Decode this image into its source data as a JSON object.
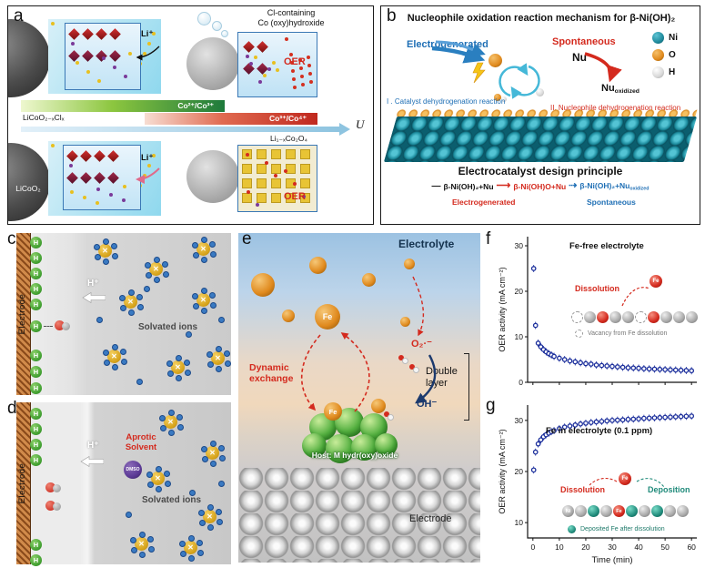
{
  "colors": {
    "blue_accent": "#1f6fb5",
    "red_accent": "#d42a1e",
    "ni_teal": "#1f8a9c",
    "o_orange": "#e0891e",
    "point_navy": "#1c2f9c",
    "deposit_teal": "#1f8a7a",
    "host_green": "#3fae3f"
  },
  "glyphs": {
    "cross": "✕",
    "h": "H"
  },
  "panel_a": {
    "label": "a",
    "caption_line1": "Cl-containing",
    "caption_line2": "Co (oxy)hydroxide",
    "li_top": "Li⁺",
    "li_bottom": "Li⁺",
    "oer_top": "OER",
    "oer_bottom": "OER",
    "licoo2xclx": "LiCoO₂₋ₓClₓ",
    "licoo2": "LiCoO₂",
    "li1xco2o4": "Li₁₋ₓCo₂O₄",
    "co_couple_low": "Co²⁺/Co³⁺",
    "co_couple_high": "Co³⁺/Co⁴⁺",
    "u_label": "U"
  },
  "panel_b": {
    "label": "b",
    "title": "Nucleophile oxidation reaction mechanism for β-Ni(OH)₂",
    "electrogenerated": "Electrogenerated",
    "spontaneous": "Spontaneous",
    "nu": "Nu",
    "nu_ox_base": "Nu",
    "nu_ox_sub": "oxidized",
    "legend": [
      {
        "label": "Ni",
        "color": "#1f8a9c"
      },
      {
        "label": "O",
        "color": "#e0891e"
      },
      {
        "label": "H",
        "color": "#e8e8e8"
      }
    ],
    "reaction_i": "I . Catalyst dehydrogenation reaction",
    "reaction_ii": "II. Nucleophile dehydrogenation reaction",
    "principle": "Electrocatalyst design principle",
    "scheme_prefix": "—",
    "scheme_start": "β-Ni(OH)₂+Nu",
    "arrow_solid": "⟶",
    "scheme_mid": "β-Ni(OH)O+Nu",
    "arrow_dashed": "⇢",
    "scheme_end_base": "β-Ni(OH)₂+Nu",
    "scheme_end_sub": "oxidized",
    "under_left": "Electrogenerated",
    "under_right": "Spontaneous"
  },
  "panel_c": {
    "label": "c",
    "electrode": "Electrode",
    "h_plus": "H⁺",
    "solvated_ions": "Solvated ions"
  },
  "panel_d": {
    "label": "d",
    "electrode": "Electrode",
    "h_plus": "H⁺",
    "aprotic_line1": "Aprotic",
    "aprotic_line2": "Solvent",
    "dmso": "DMSO",
    "solvated_ions": "Solvated ions"
  },
  "panel_e": {
    "label": "e",
    "electrolyte": "Electrolyte",
    "fe": "Fe",
    "dynamic_line1": "Dynamic",
    "dynamic_line2": "exchange",
    "o2": "O₂·⁻",
    "double_layer_line1": "Double",
    "double_layer_line2": "layer",
    "oh": "OH⁻",
    "host": "Host: M hydr(oxy)oxide",
    "electrode": "Electrode"
  },
  "panel_f": {
    "label": "f",
    "dissolution": "Dissolution",
    "fe": "Fe",
    "vacancy_caption": "Vacancy from Fe dissolution"
  },
  "panel_g": {
    "label": "g",
    "dissolution": "Dissolution",
    "deposition": "Deposition",
    "fe": "Fe",
    "ni": "Ni",
    "deposited_caption": "Deposited Fe after dissolution"
  },
  "chart_data": [
    {
      "type": "scatter",
      "title": "Fe-free electrolyte",
      "ylabel": "OER activity (mA cm⁻²)",
      "xlabel": "",
      "xlim": [
        -2,
        62
      ],
      "ylim": [
        0,
        32
      ],
      "yticks": [
        0,
        10,
        20,
        30
      ],
      "xticks": [
        0,
        10,
        20,
        30,
        40,
        50,
        60
      ],
      "show_x_labels": false,
      "grid": false,
      "legend_position": "none",
      "point_color": "#1c2f9c",
      "error_bar": 0.8,
      "x": [
        0.3,
        1,
        2,
        3,
        4,
        5,
        6,
        7,
        8,
        10,
        12,
        14,
        16,
        18,
        20,
        22,
        24,
        26,
        28,
        30,
        32,
        34,
        36,
        38,
        40,
        42,
        44,
        46,
        48,
        50,
        52,
        54,
        56,
        58,
        60
      ],
      "y": [
        25,
        12.5,
        8.6,
        7.8,
        7.2,
        6.7,
        6.3,
        6.0,
        5.7,
        5.3,
        5.0,
        4.7,
        4.5,
        4.3,
        4.1,
        4.0,
        3.8,
        3.7,
        3.6,
        3.5,
        3.4,
        3.3,
        3.2,
        3.15,
        3.1,
        3.0,
        2.95,
        2.9,
        2.85,
        2.8,
        2.75,
        2.7,
        2.65,
        2.6,
        2.55
      ]
    },
    {
      "type": "scatter",
      "title": "Fe in electrolyte (0.1 ppm)",
      "ylabel": "OER activity (mA cm⁻²)",
      "xlabel": "Time (min)",
      "xlim": [
        -2,
        62
      ],
      "ylim": [
        7,
        33
      ],
      "yticks": [
        10,
        20,
        30
      ],
      "xticks": [
        0,
        10,
        20,
        30,
        40,
        50,
        60
      ],
      "show_x_labels": true,
      "grid": false,
      "legend_position": "none",
      "point_color": "#1c2f9c",
      "error_bar": 0.7,
      "x": [
        0.3,
        1,
        2,
        3,
        4,
        5,
        6,
        7,
        8,
        10,
        12,
        14,
        16,
        18,
        20,
        22,
        24,
        26,
        28,
        30,
        32,
        34,
        36,
        38,
        40,
        42,
        44,
        46,
        48,
        50,
        52,
        54,
        56,
        58,
        60
      ],
      "y": [
        20.3,
        23.8,
        25.4,
        26.2,
        26.8,
        27.2,
        27.5,
        27.8,
        28.0,
        28.4,
        28.7,
        28.9,
        29.1,
        29.3,
        29.45,
        29.6,
        29.7,
        29.8,
        29.9,
        30.0,
        30.05,
        30.1,
        30.2,
        30.25,
        30.3,
        30.4,
        30.45,
        30.5,
        30.55,
        30.6,
        30.65,
        30.7,
        30.75,
        30.8,
        30.85
      ]
    }
  ]
}
